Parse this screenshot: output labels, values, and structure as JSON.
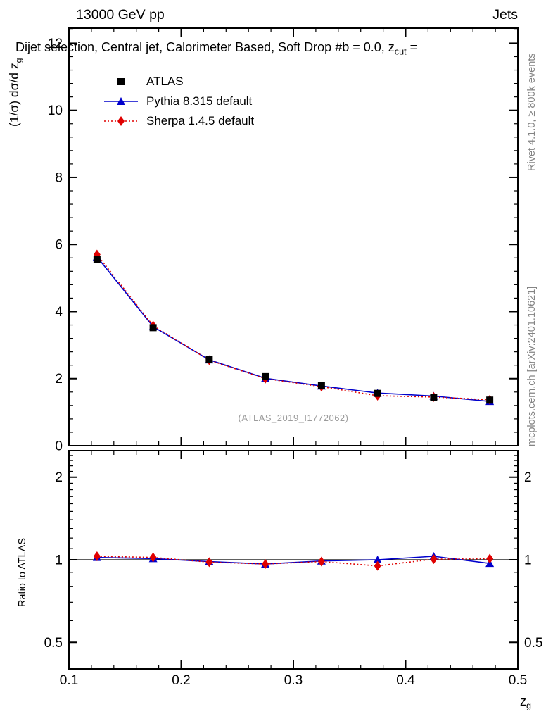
{
  "header": {
    "left": "13000 GeV pp",
    "right": "Jets"
  },
  "title": {
    "pre": "Dijet selection, Central jet, Calorimeter Based, Soft Drop #b = 0.0, z",
    "sub": "cut",
    "post": " ="
  },
  "axes": {
    "ylabel_main_pre": "(1/σ) dσ/d z",
    "ylabel_main_sub": "g",
    "ylabel_ratio": "Ratio to ATLAS",
    "xlabel_pre": "z",
    "xlabel_sub": "g"
  },
  "legend": {
    "items": [
      {
        "label": "ATLAS",
        "marker": "square",
        "color": "#000000",
        "line": "none"
      },
      {
        "label": "Pythia 8.315 default",
        "marker": "triangle",
        "color": "#0000cc",
        "line": "solid"
      },
      {
        "label": "Sherpa 1.4.5 default",
        "marker": "diamond",
        "color": "#e00000",
        "line": "dotted"
      }
    ]
  },
  "watermark": "(ATLAS_2019_I1772062)",
  "side_texts": {
    "top_right": "Rivet 4.1.0, ≥ 800k events",
    "bottom_right": "mcplots.cern.ch [arXiv:2401.10621]"
  },
  "chart_data": {
    "type": "line",
    "x": [
      0.125,
      0.175,
      0.225,
      0.275,
      0.325,
      0.375,
      0.425,
      0.475
    ],
    "xlim": [
      0.1,
      0.5
    ],
    "xticks": [
      0.1,
      0.2,
      0.3,
      0.4,
      0.5
    ],
    "main_panel": {
      "title": "(1/σ) dσ/d z_g vs z_g",
      "ylim": [
        0,
        12.45
      ],
      "yticks": [
        0,
        2,
        4,
        6,
        8,
        10,
        12
      ],
      "series": [
        {
          "name": "ATLAS",
          "marker": "square",
          "color": "#000000",
          "line": "none",
          "values": [
            5.55,
            3.52,
            2.58,
            2.06,
            1.79,
            1.56,
            1.44,
            1.36
          ],
          "errors": [
            0.1,
            0.08,
            0.06,
            0.05,
            0.05,
            0.05,
            0.05,
            0.05
          ]
        },
        {
          "name": "Pythia 8.315 default",
          "marker": "triangle",
          "color": "#0000cc",
          "line": "solid",
          "values": [
            5.63,
            3.55,
            2.56,
            2.01,
            1.78,
            1.57,
            1.48,
            1.32
          ]
        },
        {
          "name": "Sherpa 1.4.5 default",
          "marker": "diamond",
          "color": "#e00000",
          "line": "dotted",
          "values": [
            5.7,
            3.58,
            2.55,
            2.0,
            1.76,
            1.49,
            1.45,
            1.37
          ]
        }
      ]
    },
    "ratio_panel": {
      "title": "Ratio to ATLAS",
      "yscale": "log",
      "ylim": [
        0.4,
        2.5
      ],
      "yticks": [
        0.5,
        1,
        2
      ],
      "reference_line": 1,
      "series": [
        {
          "name": "Pythia 8.315 default",
          "marker": "triangle",
          "color": "#0000cc",
          "line": "solid",
          "values": [
            1.02,
            1.01,
            0.985,
            0.965,
            0.99,
            1.0,
            1.03,
            0.97
          ]
        },
        {
          "name": "Sherpa 1.4.5 default",
          "marker": "diamond",
          "color": "#e00000",
          "line": "dotted",
          "values": [
            1.03,
            1.02,
            0.98,
            0.965,
            0.985,
            0.95,
            1.005,
            1.01
          ]
        }
      ]
    }
  }
}
